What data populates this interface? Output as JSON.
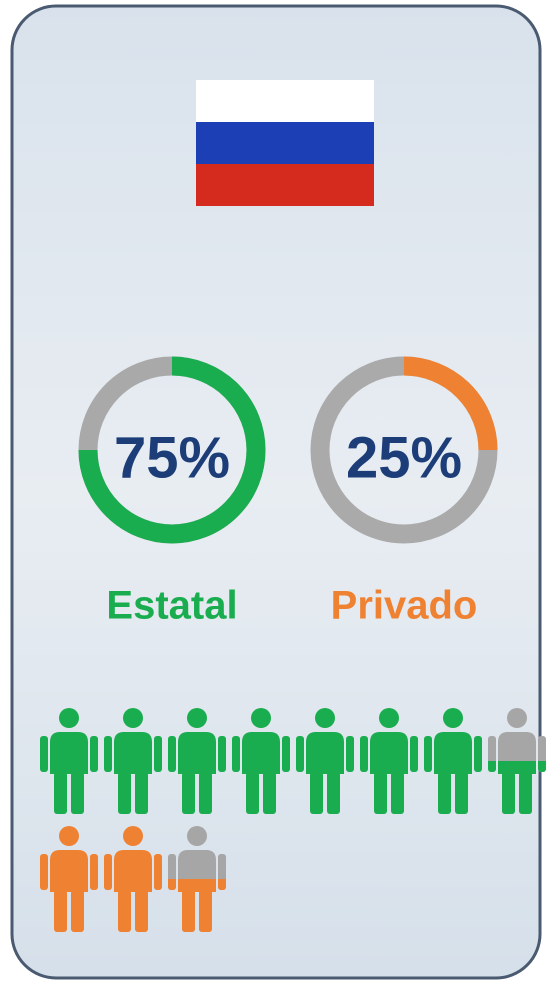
{
  "chart_data": [
    {
      "type": "donut",
      "title": "Estatal",
      "values": [
        75
      ],
      "value_labels": [
        "75%"
      ],
      "color": "#19ad4f",
      "track_color": "#a9a9a9"
    },
    {
      "type": "donut",
      "title": "Privado",
      "values": [
        25
      ],
      "value_labels": [
        "25%"
      ],
      "color": "#ef8232",
      "track_color": "#aaaaaa"
    },
    {
      "type": "pictogram",
      "values": [
        7.5,
        2.5
      ],
      "colors": [
        "#19ad4f",
        "#ef8232"
      ],
      "empty_color": "#a6a6a6"
    }
  ]
}
